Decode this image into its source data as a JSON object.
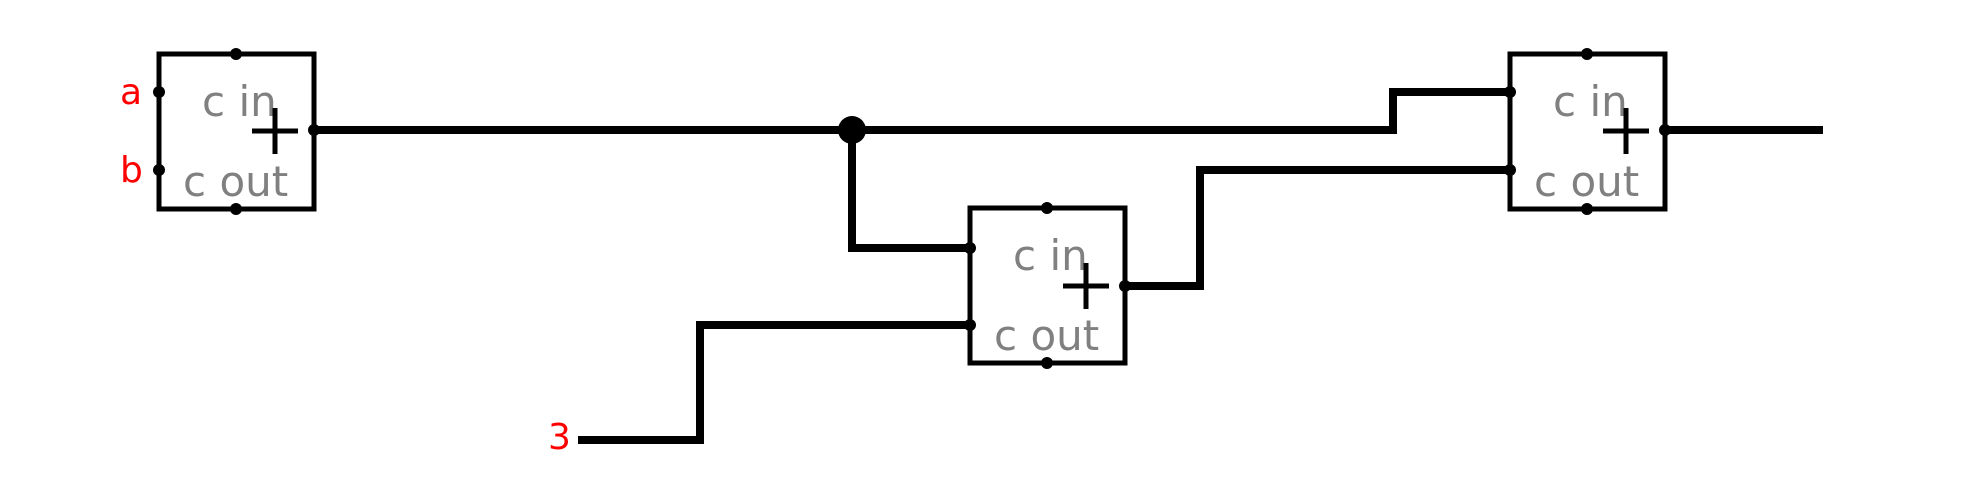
{
  "colors": {
    "wire": "#000000",
    "port_label": "#808080",
    "input_label": "#ff0000",
    "background": "#ffffff"
  },
  "adders": [
    {
      "id": "adder-1",
      "symbol": "+",
      "carry_in_label": "c in",
      "carry_out_label": "c out"
    },
    {
      "id": "adder-2",
      "symbol": "+",
      "carry_in_label": "c in",
      "carry_out_label": "c out"
    },
    {
      "id": "adder-3",
      "symbol": "+",
      "carry_in_label": "c in",
      "carry_out_label": "c out"
    }
  ],
  "inputs": {
    "a": "a",
    "b": "b",
    "constant": "3"
  }
}
